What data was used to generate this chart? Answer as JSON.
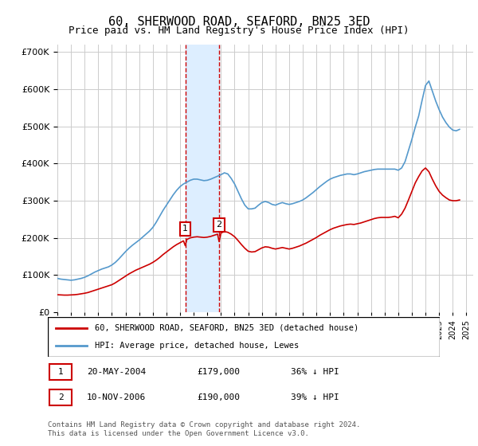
{
  "title": "60, SHERWOOD ROAD, SEAFORD, BN25 3ED",
  "subtitle": "Price paid vs. HM Land Registry's House Price Index (HPI)",
  "ylabel_ticks": [
    "£0",
    "£100K",
    "£200K",
    "£300K",
    "£400K",
    "£500K",
    "£600K",
    "£700K"
  ],
  "ytick_values": [
    0,
    100000,
    200000,
    300000,
    400000,
    500000,
    600000,
    700000
  ],
  "ylim": [
    0,
    720000
  ],
  "xlim_start": 1995.0,
  "xlim_end": 2025.5,
  "legend_line1": "60, SHERWOOD ROAD, SEAFORD, BN25 3ED (detached house)",
  "legend_line2": "HPI: Average price, detached house, Lewes",
  "sale1_label": "1",
  "sale1_date": "20-MAY-2004",
  "sale1_price": "£179,000",
  "sale1_hpi": "36% ↓ HPI",
  "sale1_x": 2004.38,
  "sale1_y": 179000,
  "sale2_label": "2",
  "sale2_date": "10-NOV-2006",
  "sale2_price": "£190,000",
  "sale2_hpi": "39% ↓ HPI",
  "sale2_x": 2006.86,
  "sale2_y": 190000,
  "footnote": "Contains HM Land Registry data © Crown copyright and database right 2024.\nThis data is licensed under the Open Government Licence v3.0.",
  "hpi_color": "#5599cc",
  "price_color": "#cc0000",
  "shade_color": "#ddeeff",
  "marker_box_color": "#cc0000",
  "hpi_data": {
    "years": [
      1995.0,
      1995.25,
      1995.5,
      1995.75,
      1996.0,
      1996.25,
      1996.5,
      1996.75,
      1997.0,
      1997.25,
      1997.5,
      1997.75,
      1998.0,
      1998.25,
      1998.5,
      1998.75,
      1999.0,
      1999.25,
      1999.5,
      1999.75,
      2000.0,
      2000.25,
      2000.5,
      2000.75,
      2001.0,
      2001.25,
      2001.5,
      2001.75,
      2002.0,
      2002.25,
      2002.5,
      2002.75,
      2003.0,
      2003.25,
      2003.5,
      2003.75,
      2004.0,
      2004.25,
      2004.5,
      2004.75,
      2005.0,
      2005.25,
      2005.5,
      2005.75,
      2006.0,
      2006.25,
      2006.5,
      2006.75,
      2007.0,
      2007.25,
      2007.5,
      2007.75,
      2008.0,
      2008.25,
      2008.5,
      2008.75,
      2009.0,
      2009.25,
      2009.5,
      2009.75,
      2010.0,
      2010.25,
      2010.5,
      2010.75,
      2011.0,
      2011.25,
      2011.5,
      2011.75,
      2012.0,
      2012.25,
      2012.5,
      2012.75,
      2013.0,
      2013.25,
      2013.5,
      2013.75,
      2014.0,
      2014.25,
      2014.5,
      2014.75,
      2015.0,
      2015.25,
      2015.5,
      2015.75,
      2016.0,
      2016.25,
      2016.5,
      2016.75,
      2017.0,
      2017.25,
      2017.5,
      2017.75,
      2018.0,
      2018.25,
      2018.5,
      2018.75,
      2019.0,
      2019.25,
      2019.5,
      2019.75,
      2020.0,
      2020.25,
      2020.5,
      2020.75,
      2021.0,
      2021.25,
      2021.5,
      2021.75,
      2022.0,
      2022.25,
      2022.5,
      2022.75,
      2023.0,
      2023.25,
      2023.5,
      2023.75,
      2024.0,
      2024.25,
      2024.5
    ],
    "values": [
      91000,
      89000,
      88000,
      87000,
      86000,
      87000,
      89000,
      91000,
      94000,
      98000,
      103000,
      108000,
      112000,
      116000,
      119000,
      122000,
      127000,
      134000,
      143000,
      153000,
      163000,
      172000,
      180000,
      187000,
      194000,
      202000,
      210000,
      218000,
      228000,
      242000,
      258000,
      274000,
      288000,
      302000,
      316000,
      328000,
      338000,
      345000,
      350000,
      355000,
      358000,
      358000,
      356000,
      354000,
      355000,
      358000,
      362000,
      366000,
      370000,
      375000,
      372000,
      360000,
      345000,
      325000,
      305000,
      288000,
      278000,
      278000,
      280000,
      288000,
      295000,
      298000,
      295000,
      290000,
      288000,
      292000,
      295000,
      292000,
      290000,
      292000,
      295000,
      298000,
      302000,
      308000,
      315000,
      322000,
      330000,
      338000,
      345000,
      352000,
      358000,
      362000,
      365000,
      368000,
      370000,
      372000,
      372000,
      370000,
      372000,
      375000,
      378000,
      380000,
      382000,
      384000,
      385000,
      385000,
      385000,
      385000,
      385000,
      385000,
      382000,
      388000,
      405000,
      435000,
      465000,
      498000,
      528000,
      570000,
      610000,
      622000,
      595000,
      568000,
      545000,
      525000,
      510000,
      498000,
      490000,
      488000,
      492000
    ]
  },
  "price_data": {
    "years": [
      1995.0,
      1995.25,
      1995.5,
      1995.75,
      1996.0,
      1996.25,
      1996.5,
      1996.75,
      1997.0,
      1997.25,
      1997.5,
      1997.75,
      1998.0,
      1998.25,
      1998.5,
      1998.75,
      1999.0,
      1999.25,
      1999.5,
      1999.75,
      2000.0,
      2000.25,
      2000.5,
      2000.75,
      2001.0,
      2001.25,
      2001.5,
      2001.75,
      2002.0,
      2002.25,
      2002.5,
      2002.75,
      2003.0,
      2003.25,
      2003.5,
      2003.75,
      2004.0,
      2004.25,
      2004.38,
      2004.5,
      2004.75,
      2005.0,
      2005.25,
      2005.5,
      2005.75,
      2006.0,
      2006.25,
      2006.5,
      2006.75,
      2006.86,
      2007.0,
      2007.25,
      2007.5,
      2007.75,
      2008.0,
      2008.25,
      2008.5,
      2008.75,
      2009.0,
      2009.25,
      2009.5,
      2009.75,
      2010.0,
      2010.25,
      2010.5,
      2010.75,
      2011.0,
      2011.25,
      2011.5,
      2011.75,
      2012.0,
      2012.25,
      2012.5,
      2012.75,
      2013.0,
      2013.25,
      2013.5,
      2013.75,
      2014.0,
      2014.25,
      2014.5,
      2014.75,
      2015.0,
      2015.25,
      2015.5,
      2015.75,
      2016.0,
      2016.25,
      2016.5,
      2016.75,
      2017.0,
      2017.25,
      2017.5,
      2017.75,
      2018.0,
      2018.25,
      2018.5,
      2018.75,
      2019.0,
      2019.25,
      2019.5,
      2019.75,
      2020.0,
      2020.25,
      2020.5,
      2020.75,
      2021.0,
      2021.25,
      2021.5,
      2021.75,
      2022.0,
      2022.25,
      2022.5,
      2022.75,
      2023.0,
      2023.25,
      2023.5,
      2023.75,
      2024.0,
      2024.25,
      2024.5
    ],
    "values": [
      47000,
      46500,
      46000,
      46000,
      46500,
      47000,
      48000,
      49500,
      51000,
      53000,
      56000,
      59000,
      62000,
      65000,
      68000,
      71000,
      74000,
      79000,
      85000,
      91000,
      97000,
      103000,
      108000,
      113000,
      117000,
      121000,
      125000,
      129000,
      134000,
      140000,
      147000,
      155000,
      162000,
      169000,
      176000,
      182000,
      187000,
      192000,
      179000,
      196000,
      200000,
      202000,
      203000,
      202000,
      201000,
      202000,
      204000,
      207000,
      210000,
      190000,
      213000,
      217000,
      215000,
      210000,
      203000,
      193000,
      182000,
      172000,
      164000,
      162000,
      163000,
      168000,
      173000,
      176000,
      175000,
      172000,
      170000,
      172000,
      174000,
      172000,
      170000,
      172000,
      175000,
      178000,
      182000,
      186000,
      191000,
      196000,
      201000,
      207000,
      212000,
      217000,
      222000,
      226000,
      229000,
      232000,
      234000,
      236000,
      237000,
      236000,
      238000,
      240000,
      243000,
      246000,
      249000,
      252000,
      254000,
      255000,
      255000,
      255000,
      256000,
      258000,
      254000,
      264000,
      280000,
      302000,
      325000,
      348000,
      365000,
      380000,
      388000,
      378000,
      358000,
      340000,
      325000,
      315000,
      308000,
      302000,
      300000,
      300000,
      302000
    ]
  }
}
